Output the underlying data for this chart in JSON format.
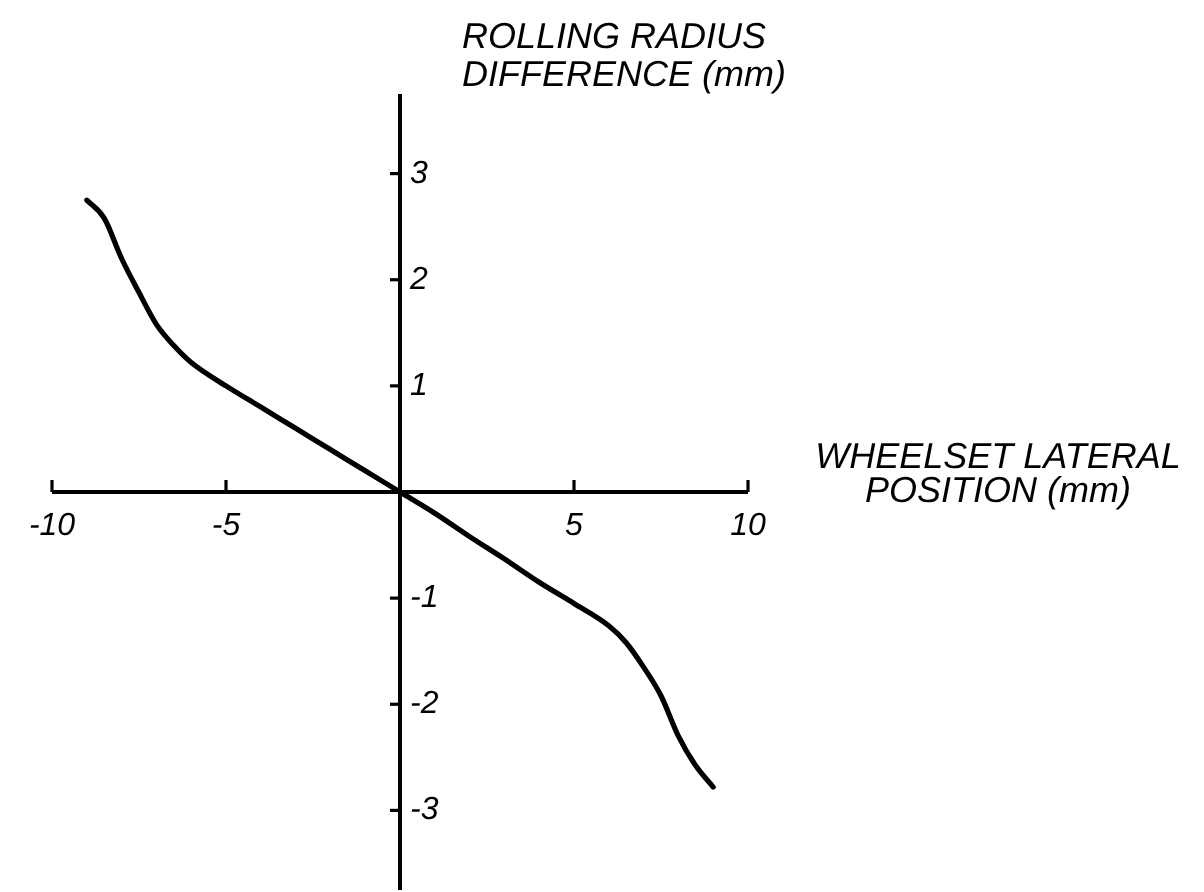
{
  "chart_data": {
    "type": "line",
    "xlabel": "WHEELSET LATERAL POSITION (mm)",
    "ylabel": "ROLLING RADIUS DIFFERENCE (mm)",
    "x": [
      -9,
      -8.5,
      -8,
      -7.5,
      -7,
      -6.5,
      -6,
      -5,
      -4,
      -3,
      -2,
      -1,
      0,
      1,
      2,
      3,
      4,
      5,
      6,
      6.5,
      7,
      7.5,
      8,
      8.5,
      9
    ],
    "values": [
      2.75,
      2.58,
      2.2,
      1.88,
      1.58,
      1.38,
      1.22,
      1.0,
      0.8,
      0.6,
      0.4,
      0.2,
      0,
      -0.2,
      -0.42,
      -0.63,
      -0.85,
      -1.05,
      -1.26,
      -1.42,
      -1.65,
      -1.92,
      -2.3,
      -2.58,
      -2.78
    ],
    "color": "#000000",
    "marker": "none",
    "line_style": "solid",
    "xlim": [
      -10,
      10
    ],
    "ylim": [
      -3.75,
      3.75
    ],
    "xticks": [
      -10,
      -5,
      5,
      10
    ],
    "yticks": [
      -3,
      -2,
      -1,
      1,
      2,
      3
    ]
  }
}
